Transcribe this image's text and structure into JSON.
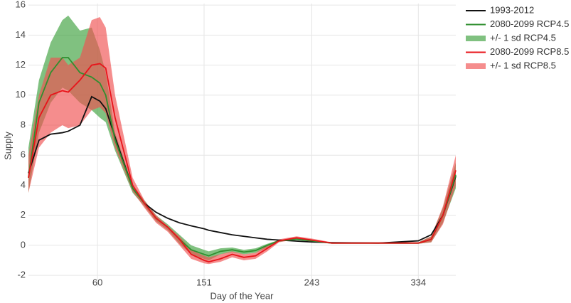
{
  "chart_data": {
    "type": "line",
    "xlabel": "Day of the Year",
    "ylabel": "Supply",
    "x": [
      1,
      10,
      20,
      30,
      35,
      45,
      55,
      62,
      67,
      75,
      90,
      100,
      110,
      120,
      130,
      140,
      151,
      155,
      165,
      175,
      185,
      195,
      205,
      215,
      230,
      243,
      260,
      300,
      334,
      345,
      355,
      366
    ],
    "xlim": [
      1,
      366
    ],
    "xticks": [
      60,
      151,
      243,
      334
    ],
    "ylim": [
      -2.8,
      16.1
    ],
    "yticks": [
      -2,
      0,
      2,
      4,
      6,
      8,
      10,
      12,
      14,
      16
    ],
    "grid": true,
    "legend": "outside-top-right",
    "series": [
      {
        "name": "1993-2012",
        "kind": "line",
        "color": "#111111",
        "values": [
          4.8,
          7.0,
          7.4,
          7.5,
          7.6,
          8.0,
          9.9,
          9.6,
          9.1,
          7.2,
          3.8,
          2.8,
          2.2,
          1.8,
          1.5,
          1.3,
          1.1,
          1.0,
          0.85,
          0.7,
          0.6,
          0.5,
          0.4,
          0.35,
          0.28,
          0.22,
          0.18,
          0.15,
          0.3,
          0.7,
          2.0,
          4.6
        ]
      },
      {
        "name": "2080-2099 RCP4.5",
        "kind": "line",
        "color": "#2f8f2f",
        "values": [
          4.5,
          9.5,
          11.5,
          12.5,
          12.5,
          11.5,
          11.2,
          10.8,
          10.0,
          7.0,
          3.8,
          2.8,
          1.8,
          1.2,
          0.4,
          -0.3,
          -0.6,
          -0.7,
          -0.4,
          -0.3,
          -0.45,
          -0.35,
          0,
          0.3,
          0.4,
          0.3,
          0.15,
          0.15,
          0.15,
          0.4,
          2.0,
          4.7
        ]
      },
      {
        "name": "+/- 1 sd RCP4.5",
        "kind": "band",
        "color": "rgba(60,160,60,0.65)",
        "upper": [
          6.5,
          11,
          13.5,
          15,
          15.3,
          14.3,
          14.5,
          13,
          11.5,
          7.5,
          4,
          3,
          2,
          1.4,
          0.7,
          0,
          -0.3,
          -0.4,
          -0.2,
          -0.15,
          -0.3,
          -0.2,
          0.1,
          0.35,
          0.45,
          0.35,
          0.2,
          0.2,
          0.2,
          0.6,
          2.5,
          5.5
        ],
        "lower": [
          3.5,
          7.5,
          9.5,
          10.5,
          10.3,
          9.5,
          9.0,
          8.5,
          8.2,
          6.3,
          3.5,
          2.6,
          1.6,
          1.0,
          0.1,
          -0.6,
          -0.9,
          -1.0,
          -0.6,
          -0.45,
          -0.6,
          -0.5,
          -0.15,
          0.25,
          0.35,
          0.25,
          0.1,
          0.1,
          0.1,
          0.2,
          1.5,
          3.8
        ]
      },
      {
        "name": "2080-2099 RCP8.5",
        "kind": "line",
        "color": "#e8141a",
        "values": [
          4.5,
          8.5,
          10.0,
          10.3,
          10.2,
          11.0,
          12.0,
          12.1,
          11.8,
          8.5,
          4.0,
          2.8,
          1.8,
          1.2,
          0.4,
          -0.6,
          -1.0,
          -1.1,
          -0.9,
          -0.6,
          -0.8,
          -0.7,
          -0.2,
          0.3,
          0.5,
          0.35,
          0.15,
          0.15,
          0.15,
          0.4,
          2.0,
          5.0
        ]
      },
      {
        "name": "+/- 1 sd RCP8.5",
        "kind": "band",
        "color": "rgba(240,80,80,0.65)",
        "upper": [
          6,
          10,
          12.5,
          12.5,
          12,
          12.5,
          15,
          15.2,
          14.5,
          10,
          4.5,
          3,
          2,
          1.3,
          0.6,
          -0.3,
          -0.7,
          -0.8,
          -0.6,
          -0.4,
          -0.6,
          -0.5,
          0,
          0.4,
          0.6,
          0.45,
          0.2,
          0.2,
          0.2,
          0.6,
          2.6,
          6
        ],
        "lower": [
          3.5,
          6.5,
          7.5,
          8,
          7.8,
          8,
          9,
          9.2,
          8.8,
          6.5,
          3.6,
          2.5,
          1.5,
          0.9,
          0,
          -0.9,
          -1.2,
          -1.25,
          -1.1,
          -0.8,
          -1.0,
          -0.9,
          -0.4,
          0.2,
          0.4,
          0.25,
          0.1,
          0.1,
          0.1,
          0.2,
          1.4,
          4
        ]
      }
    ]
  }
}
